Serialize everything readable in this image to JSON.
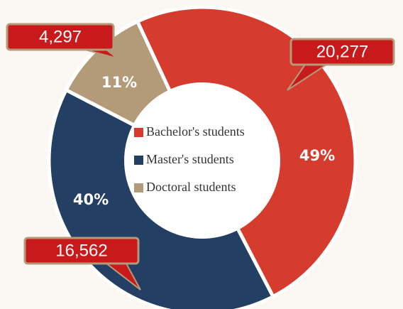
{
  "chart_data": {
    "type": "donut",
    "categories": [
      "Bachelor's students",
      "Master's students",
      "Doctoral students"
    ],
    "values": [
      20277,
      16562,
      4297
    ],
    "value_labels": [
      "20,277",
      "16,562",
      "4,297"
    ],
    "percents": [
      49,
      40,
      11
    ],
    "percent_labels": [
      "49%",
      "40%",
      "11%"
    ],
    "colors": [
      "#d63c2d",
      "#233f63",
      "#b39a78"
    ]
  }
}
